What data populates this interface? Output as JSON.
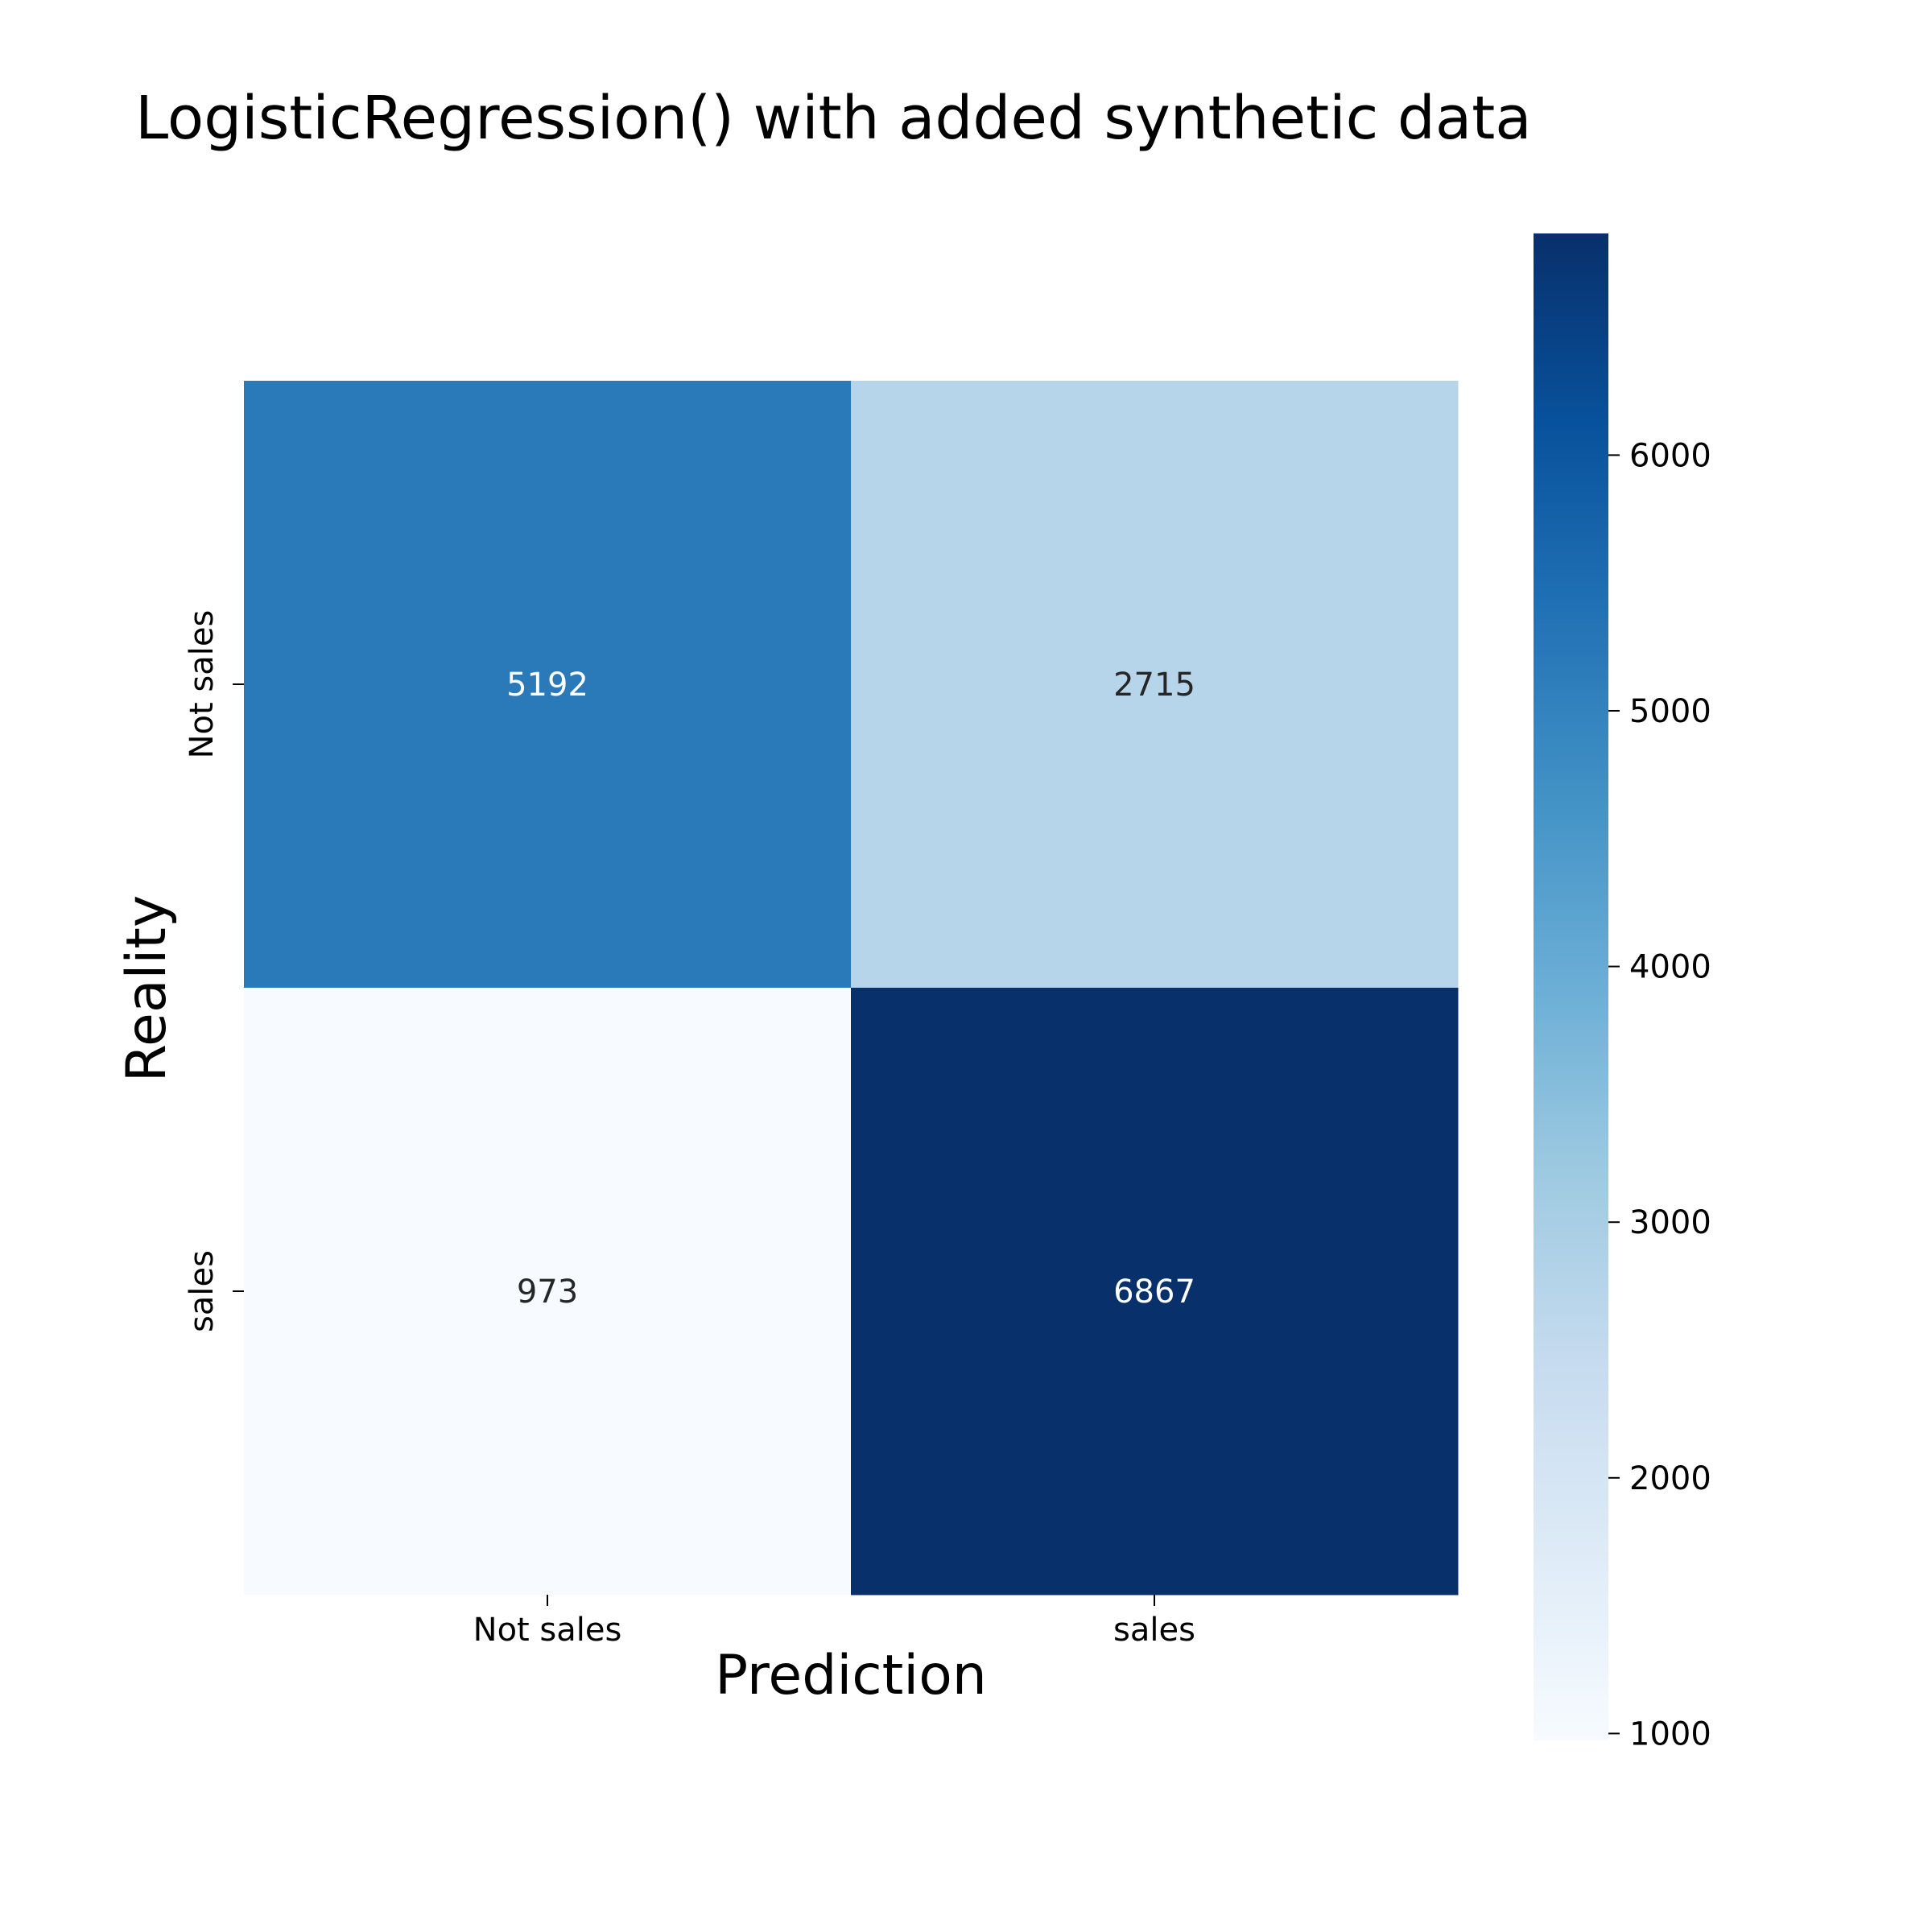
{
  "chart_data": {
    "type": "heatmap",
    "title": "LogisticRegression() with added synthetic data",
    "xlabel": "Prediction",
    "ylabel": "Reality",
    "x_categories": [
      "Not sales",
      "sales"
    ],
    "y_categories": [
      "Not sales",
      "sales"
    ],
    "values": [
      [
        5192,
        2715
      ],
      [
        973,
        6867
      ]
    ],
    "cell_labels": [
      [
        "5192",
        "2715"
      ],
      [
        "973",
        "6867"
      ]
    ],
    "colormap": "Blues",
    "colorbar": {
      "range": [
        973,
        6867
      ],
      "ticks": [
        1000,
        2000,
        3000,
        4000,
        5000,
        6000
      ],
      "tick_labels": [
        "1000",
        "2000",
        "3000",
        "4000",
        "5000",
        "6000"
      ]
    },
    "colors": {
      "blues_stops": [
        "#f7fbff",
        "#deebf7",
        "#c6dbef",
        "#9ecae1",
        "#6baed6",
        "#4292c6",
        "#2171b5",
        "#08519c",
        "#08306b"
      ],
      "light_text": "#ffffff",
      "dark_text": "#262626"
    }
  }
}
